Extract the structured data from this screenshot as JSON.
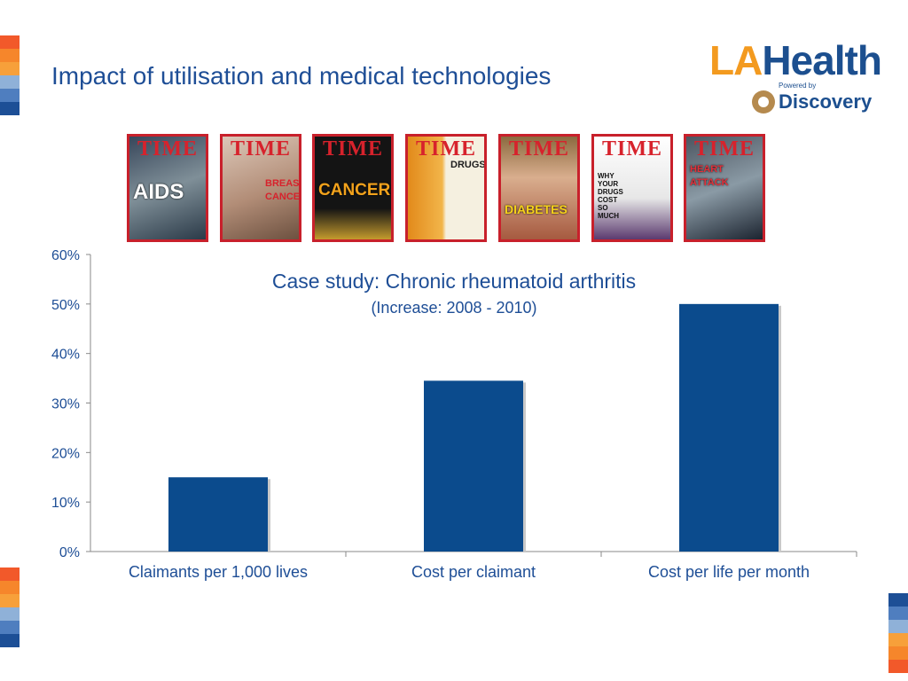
{
  "slide": {
    "title": "Impact of utilisation and medical technologies"
  },
  "logo": {
    "brand_la": "LA",
    "brand_health": "Health",
    "powered_by": "Powered by",
    "partner": "Discovery"
  },
  "covers": [
    {
      "masthead": "TIME",
      "headline": "AIDS"
    },
    {
      "masthead": "TIME",
      "headline": "BREAST CANCER"
    },
    {
      "masthead": "TIME",
      "headline": "CANCER."
    },
    {
      "masthead": "TIME",
      "headline": "DRUGS"
    },
    {
      "masthead": "TIME",
      "headline": "DIABETES"
    },
    {
      "masthead": "TIME",
      "headline": "WHY YOUR DRUGS COST SO MUCH"
    },
    {
      "masthead": "TIME",
      "headline": "HEART ATTACK"
    }
  ],
  "colors": {
    "bar": "#0b4b8d",
    "title": "#1e4e96",
    "cover_border": "#c8202b",
    "stripes_top": [
      "#f2592a",
      "#f6862b",
      "#f7a03a",
      "#8fb1d8",
      "#4f7ebf",
      "#1d4f96"
    ],
    "stripes_bottom": [
      "#f2592a",
      "#f6862b",
      "#f7a03a",
      "#8fb1d8",
      "#4f7ebf",
      "#1d4f96"
    ],
    "stripes_right": [
      "#1d4f96",
      "#4f7ebf",
      "#8fb1d8",
      "#f7a03a",
      "#f6862b",
      "#f2592a"
    ]
  },
  "chart_data": {
    "type": "bar",
    "title": "Case study: Chronic rheumatoid arthritis",
    "subtitle": "(Increase: 2008 - 2010)",
    "categories": [
      "Claimants per 1,000 lives",
      "Cost per claimant",
      "Cost per life per month"
    ],
    "values": [
      0.15,
      0.345,
      0.5
    ],
    "ylim": [
      0,
      0.6
    ],
    "yticks": [
      0,
      0.1,
      0.2,
      0.3,
      0.4,
      0.5,
      0.6
    ],
    "ytick_labels": [
      "0%",
      "10%",
      "20%",
      "30%",
      "40%",
      "50%",
      "60%"
    ],
    "grid": false,
    "legend": "none"
  }
}
